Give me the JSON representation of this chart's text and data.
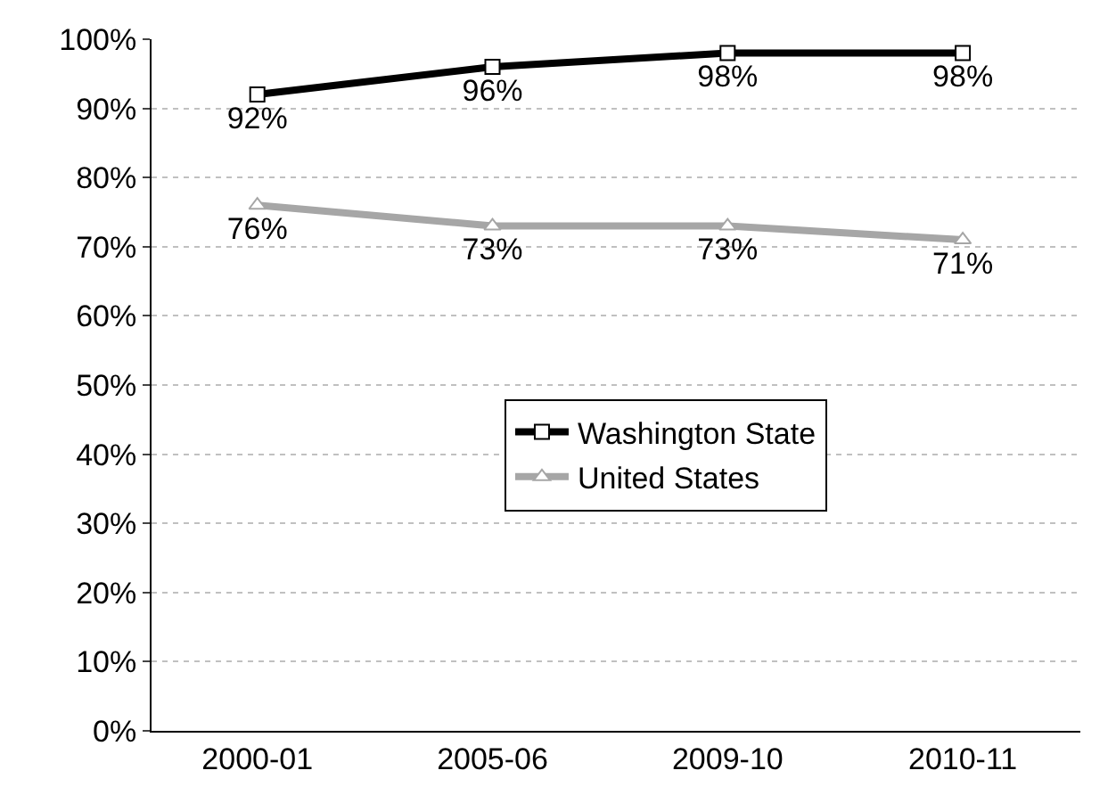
{
  "chart_data": {
    "type": "line",
    "categories": [
      "2000-01",
      "2005-06",
      "2009-10",
      "2010-11"
    ],
    "series": [
      {
        "name": "Washington State",
        "color": "#000000",
        "marker": "square",
        "values": [
          92,
          96,
          98,
          98
        ],
        "value_labels": [
          "92%",
          "96%",
          "98%",
          "98%"
        ]
      },
      {
        "name": "United States",
        "color": "#a6a6a6",
        "marker": "triangle",
        "values": [
          76,
          73,
          73,
          71
        ],
        "value_labels": [
          "76%",
          "73%",
          "73%",
          "71%"
        ]
      }
    ],
    "ylim": [
      0,
      100
    ],
    "yticks": [
      {
        "value": 0,
        "label": "0%"
      },
      {
        "value": 10,
        "label": "10%"
      },
      {
        "value": 20,
        "label": "20%"
      },
      {
        "value": 30,
        "label": "30%"
      },
      {
        "value": 40,
        "label": "40%"
      },
      {
        "value": 50,
        "label": "50%"
      },
      {
        "value": 60,
        "label": "60%"
      },
      {
        "value": 70,
        "label": "70%"
      },
      {
        "value": 80,
        "label": "80%"
      },
      {
        "value": 90,
        "label": "90%"
      },
      {
        "value": 100,
        "label": "100%"
      }
    ],
    "grid": "y",
    "legend": "center",
    "line_style": "solid"
  }
}
